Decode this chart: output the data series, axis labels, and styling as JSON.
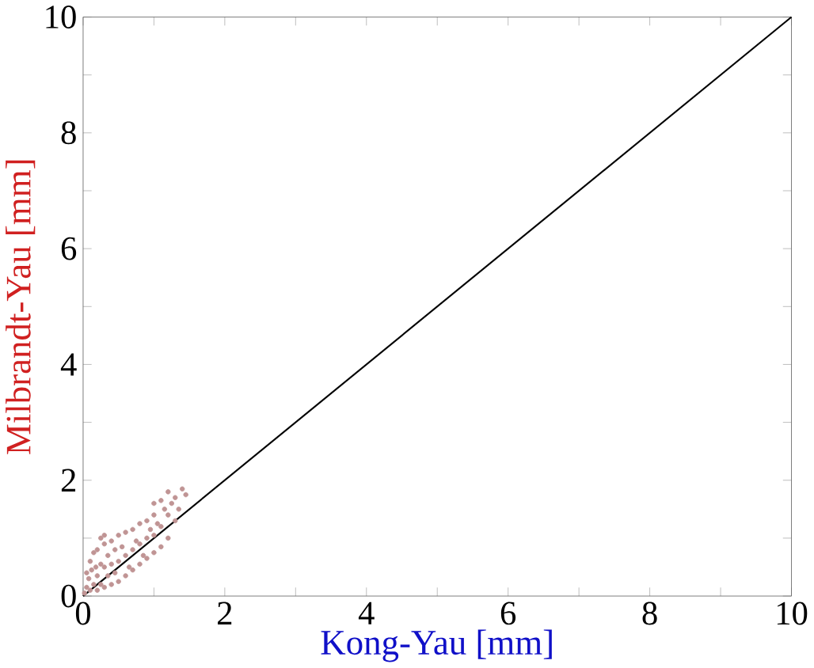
{
  "chart_data": {
    "type": "scatter",
    "xlabel": "Kong-Yau [mm]",
    "ylabel": "Milbrandt-Yau [mm]",
    "xlim": [
      0,
      10
    ],
    "ylim": [
      0,
      10
    ],
    "xticks": [
      0,
      {
        "value": 1,
        "label": null
      },
      2,
      {
        "value": 3,
        "label": null
      },
      4,
      {
        "value": 5,
        "label": null
      },
      6,
      {
        "value": 7,
        "label": null
      },
      8,
      {
        "value": 9,
        "label": null
      },
      10
    ],
    "yticks": [
      0,
      {
        "value": 1,
        "label": null
      },
      2,
      {
        "value": 3,
        "label": null
      },
      4,
      {
        "value": 5,
        "label": null
      },
      6,
      {
        "value": 7,
        "label": null
      },
      8,
      {
        "value": 9,
        "label": null
      },
      10
    ],
    "grid": false,
    "series": [
      {
        "marker": "circle",
        "color": "#c09494",
        "x": [
          0.02,
          0.05,
          0.05,
          0.08,
          0.1,
          0.1,
          0.12,
          0.15,
          0.15,
          0.18,
          0.2,
          0.2,
          0.2,
          0.25,
          0.25,
          0.3,
          0.3,
          0.3,
          0.35,
          0.35,
          0.4,
          0.4,
          0.4,
          0.45,
          0.45,
          0.5,
          0.5,
          0.5,
          0.55,
          0.6,
          0.6,
          0.6,
          0.65,
          0.7,
          0.7,
          0.7,
          0.75,
          0.8,
          0.8,
          0.8,
          0.85,
          0.9,
          0.9,
          0.9,
          0.95,
          1.0,
          1.0,
          1.0,
          1.05,
          1.1,
          1.1,
          1.15,
          1.2,
          1.2,
          1.25,
          1.3,
          1.3,
          1.35,
          1.4,
          1.45,
          1.0,
          1.1,
          1.2,
          0.25,
          0.3
        ],
        "values": [
          0.05,
          0.15,
          0.4,
          0.3,
          0.1,
          0.6,
          0.45,
          0.2,
          0.75,
          0.5,
          0.1,
          0.35,
          0.8,
          0.55,
          0.2,
          0.15,
          0.5,
          0.9,
          0.35,
          0.7,
          0.2,
          0.55,
          0.95,
          0.4,
          0.8,
          0.25,
          0.6,
          1.05,
          0.85,
          0.35,
          0.7,
          1.1,
          0.5,
          0.45,
          0.8,
          1.15,
          0.95,
          0.55,
          0.9,
          1.25,
          0.7,
          0.65,
          1.0,
          1.3,
          1.15,
          0.75,
          1.05,
          1.4,
          1.25,
          0.85,
          1.2,
          1.5,
          1.0,
          1.4,
          1.6,
          1.3,
          1.7,
          1.5,
          1.85,
          1.75,
          1.6,
          1.65,
          1.8,
          1.0,
          1.05
        ]
      },
      {
        "type": "line",
        "marker": "none",
        "color": "#000000",
        "x": [
          0,
          10
        ],
        "values": [
          0,
          10
        ]
      }
    ]
  }
}
